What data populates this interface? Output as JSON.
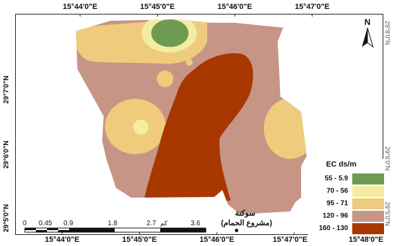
{
  "map": {
    "longitude_labels_top": [
      "15°44'0\"E",
      "15°45'0\"E",
      "15°46'0\"E",
      "15°47'0\"E"
    ],
    "longitude_labels_bottom": [
      "15°44'0\"E",
      "15°45'0\"E",
      "15°46'0\"E",
      "15°47'0\"E",
      "15°48'0\"E"
    ],
    "latitude_labels_left": [
      "29°7'0\"N",
      "29°6'0\"N",
      "29°5'0\"N"
    ],
    "latitude_labels_right": [
      "29°8'0\"N",
      "29°6'0\"N",
      "29°5'0\"N"
    ],
    "north_label": "N",
    "place_name": "سوكنة",
    "place_subname": "(مشروع الحمام)",
    "scale": {
      "ticks": [
        "0",
        "0.45",
        "0.9",
        "1.8",
        "2.7",
        "3.6"
      ],
      "unit": "كم"
    },
    "legend": {
      "title": "EC ds/m",
      "items": [
        {
          "label": "55 - 5.9",
          "color": "#6e9a52"
        },
        {
          "label": "70 - 56",
          "color": "#f3eda2"
        },
        {
          "label": "95 - 71",
          "color": "#efcb7d"
        },
        {
          "label": "120 - 96",
          "color": "#c79585"
        },
        {
          "label": "160 - 130",
          "color": "#a83800"
        }
      ]
    },
    "colors": {
      "class1": "#6e9a52",
      "class2": "#f3eda2",
      "class3": "#efcb7d",
      "class4": "#c79585",
      "class5": "#a83800"
    }
  }
}
